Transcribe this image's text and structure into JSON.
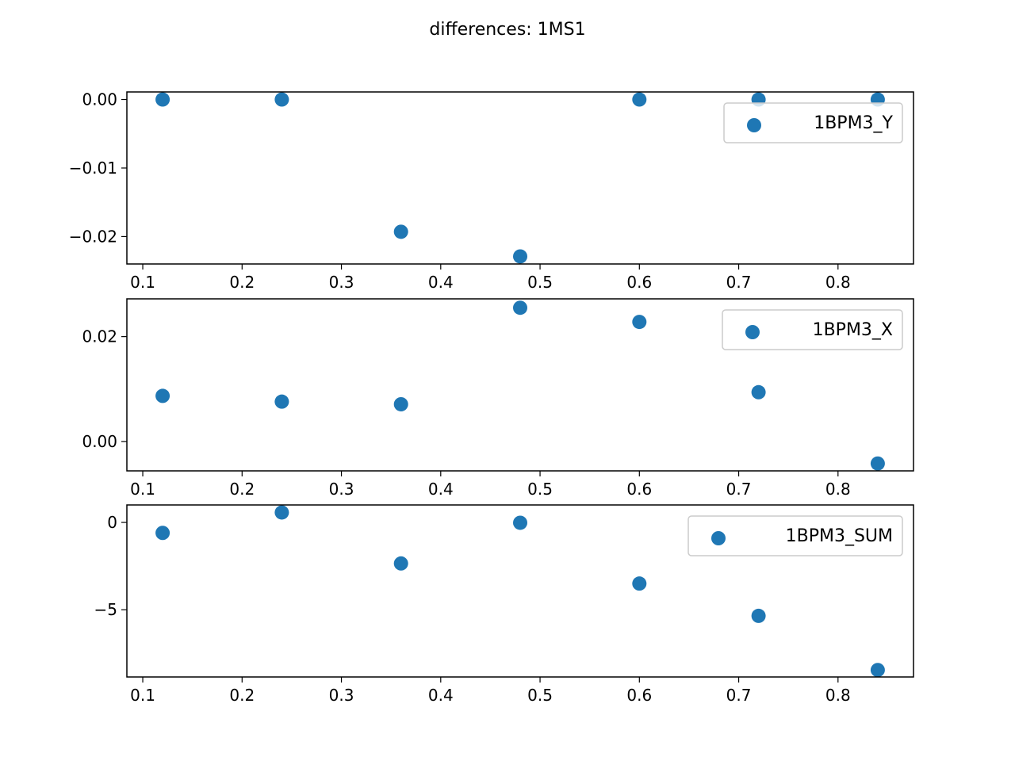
{
  "figure": {
    "title": "differences: 1MS1",
    "marker_color": "#1f77b4"
  },
  "chart_data": [
    {
      "type": "scatter",
      "title": "",
      "xlabel": "",
      "ylabel": "",
      "xlim": [
        0.084,
        0.876
      ],
      "ylim": [
        -0.024,
        0.0011
      ],
      "x_ticks": [
        0.1,
        0.2,
        0.3,
        0.4,
        0.5,
        0.6,
        0.7,
        0.8
      ],
      "y_ticks": [
        0.0,
        -0.01,
        -0.02
      ],
      "y_tick_labels": [
        "0.00",
        "−0.01",
        "−0.02"
      ],
      "grid": false,
      "legend_position": "upper right",
      "series": [
        {
          "name": "1BPM3_Y",
          "x": [
            0.12,
            0.24,
            0.36,
            0.48,
            0.6,
            0.72,
            0.84
          ],
          "y": [
            0.0,
            0.0,
            -0.0193,
            -0.0229,
            0.0,
            0.0,
            0.0
          ]
        }
      ]
    },
    {
      "type": "scatter",
      "title": "",
      "xlabel": "",
      "ylabel": "",
      "xlim": [
        0.084,
        0.876
      ],
      "ylim": [
        -0.0056,
        0.0272
      ],
      "x_ticks": [
        0.1,
        0.2,
        0.3,
        0.4,
        0.5,
        0.6,
        0.7,
        0.8
      ],
      "y_ticks": [
        0.02,
        0.0
      ],
      "y_tick_labels": [
        "0.02",
        "0.00"
      ],
      "grid": false,
      "legend_position": "upper right",
      "series": [
        {
          "name": "1BPM3_X",
          "x": [
            0.12,
            0.24,
            0.36,
            0.48,
            0.6,
            0.72,
            0.84
          ],
          "y": [
            0.0087,
            0.0076,
            0.0071,
            0.0255,
            0.0228,
            0.0094,
            -0.0042
          ]
        }
      ]
    },
    {
      "type": "scatter",
      "title": "",
      "xlabel": "",
      "ylabel": "",
      "xlim": [
        0.084,
        0.876
      ],
      "ylim": [
        -8.85,
        1.0
      ],
      "x_ticks": [
        0.1,
        0.2,
        0.3,
        0.4,
        0.5,
        0.6,
        0.7,
        0.8
      ],
      "y_ticks": [
        0,
        -5
      ],
      "y_tick_labels": [
        "0",
        "−5"
      ],
      "grid": false,
      "legend_position": "upper right",
      "series": [
        {
          "name": "1BPM3_SUM",
          "x": [
            0.12,
            0.24,
            0.36,
            0.48,
            0.6,
            0.72,
            0.84
          ],
          "y": [
            -0.6,
            0.57,
            -2.35,
            -0.02,
            -3.5,
            -5.35,
            -8.45
          ]
        }
      ]
    }
  ]
}
